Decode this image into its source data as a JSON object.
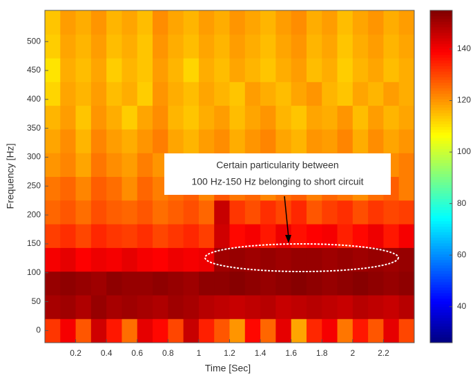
{
  "chart_data": {
    "type": "heatmap",
    "xlabel": "Time [Sec]",
    "ylabel": "Frequency [Hz]",
    "annotation": [
      "Certain particularity between",
      "100 Hz-150 Hz belonging to short circuit"
    ],
    "colormap": "jet",
    "x": [
      0.05,
      0.15,
      0.25,
      0.35,
      0.45,
      0.55,
      0.65,
      0.75,
      0.85,
      0.95,
      1.05,
      1.15,
      1.25,
      1.35,
      1.45,
      1.55,
      1.65,
      1.75,
      1.85,
      1.95,
      2.05,
      2.15,
      2.25,
      2.35
    ],
    "y": [
      0,
      41,
      82,
      123,
      164,
      205,
      246,
      287,
      328,
      369,
      410,
      451,
      492,
      533
    ],
    "z": [
      [
        132,
        140,
        128,
        145,
        136,
        125,
        142,
        138,
        130,
        146,
        135,
        128,
        120,
        138,
        126,
        142,
        118,
        134,
        140,
        124,
        136,
        128,
        142,
        130
      ],
      [
        150,
        151,
        149,
        152,
        150,
        151,
        150,
        149,
        151,
        150,
        148,
        147,
        146,
        147,
        148,
        146,
        147,
        148,
        147,
        146,
        148,
        147,
        146,
        148
      ],
      [
        152,
        153,
        152,
        151,
        153,
        152,
        152,
        153,
        152,
        151,
        153,
        153,
        154,
        153,
        152,
        153,
        154,
        153,
        152,
        153,
        154,
        153,
        152,
        153
      ],
      [
        140,
        142,
        139,
        141,
        140,
        142,
        140,
        139,
        141,
        140,
        141,
        151,
        152,
        151,
        152,
        151,
        152,
        152,
        151,
        152,
        151,
        152,
        151,
        152
      ],
      [
        131,
        133,
        130,
        134,
        132,
        131,
        133,
        130,
        132,
        134,
        131,
        145,
        138,
        140,
        136,
        141,
        137,
        139,
        140,
        135,
        138,
        141,
        136,
        140
      ],
      [
        126,
        128,
        125,
        129,
        127,
        126,
        128,
        125,
        127,
        129,
        126,
        146,
        132,
        129,
        133,
        130,
        134,
        128,
        131,
        133,
        129,
        132,
        130,
        131
      ],
      [
        124,
        126,
        122,
        127,
        125,
        121,
        126,
        123,
        125,
        127,
        122,
        128,
        124,
        126,
        122,
        125,
        127,
        123,
        126,
        124,
        121,
        125,
        127,
        123
      ],
      [
        120,
        122,
        118,
        124,
        121,
        119,
        123,
        120,
        122,
        118,
        121,
        124,
        119,
        122,
        120,
        123,
        118,
        121,
        124,
        120,
        122,
        119,
        121,
        123
      ],
      [
        118,
        121,
        116,
        122,
        119,
        117,
        120,
        123,
        118,
        116,
        119,
        121,
        117,
        120,
        122,
        118,
        116,
        120,
        119,
        122,
        117,
        121,
        118,
        120
      ],
      [
        116,
        119,
        114,
        120,
        117,
        113,
        118,
        121,
        116,
        114,
        117,
        119,
        115,
        118,
        120,
        116,
        114,
        118,
        117,
        120,
        115,
        119,
        116,
        118
      ],
      [
        112,
        118,
        116,
        119,
        115,
        117,
        113,
        120,
        117,
        115,
        118,
        116,
        114,
        119,
        117,
        115,
        118,
        120,
        116,
        114,
        118,
        116,
        119,
        117
      ],
      [
        110,
        117,
        115,
        118,
        113,
        116,
        114,
        119,
        116,
        112,
        117,
        115,
        118,
        116,
        114,
        117,
        119,
        115,
        117,
        113,
        116,
        118,
        115,
        117
      ],
      [
        113,
        118,
        116,
        119,
        115,
        117,
        114,
        120,
        117,
        115,
        118,
        116,
        119,
        117,
        115,
        118,
        120,
        116,
        118,
        114,
        117,
        119,
        116,
        118
      ],
      [
        114,
        119,
        117,
        120,
        116,
        118,
        115,
        121,
        118,
        116,
        119,
        117,
        120,
        118,
        116,
        119,
        121,
        117,
        119,
        115,
        118,
        120,
        117,
        119
      ]
    ],
    "xlim": [
      0,
      2.4
    ],
    "ylim": [
      -21,
      554
    ],
    "clim": [
      26,
      155
    ],
    "xticks": [
      0.2,
      0.4,
      0.6,
      0.8,
      1,
      1.2,
      1.4,
      1.6,
      1.8,
      2,
      2.2
    ],
    "yticks": [
      0,
      50,
      100,
      150,
      200,
      250,
      300,
      350,
      400,
      450,
      500
    ],
    "cticks": [
      40,
      60,
      80,
      100,
      120,
      140
    ]
  }
}
